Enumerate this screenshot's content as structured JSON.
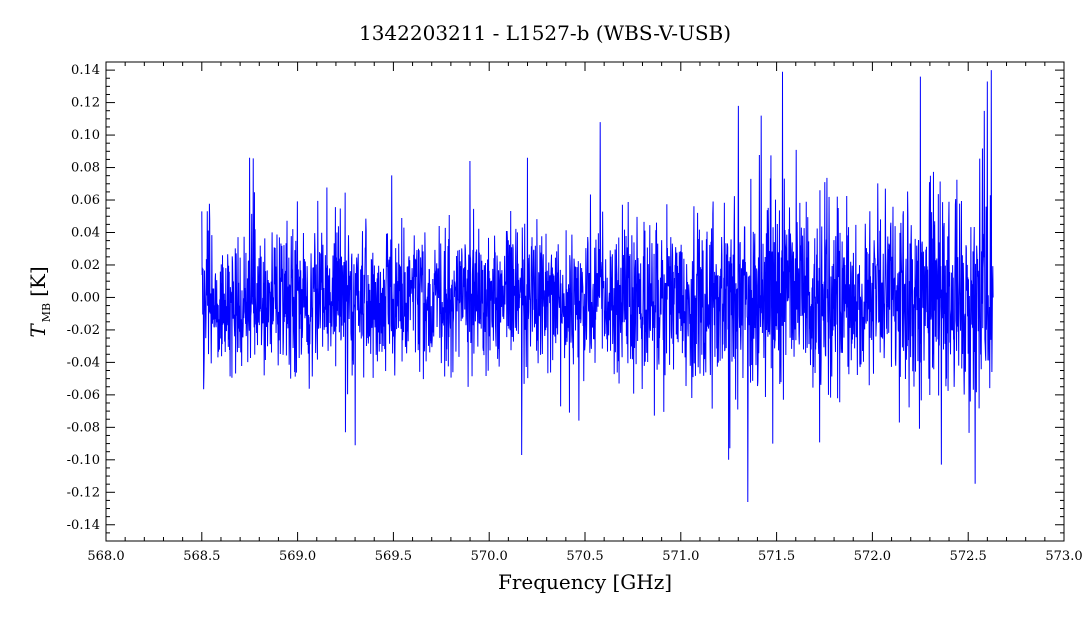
{
  "chart_data": {
    "type": "line",
    "title": "1342203211 - L1527-b (WBS-V-USB)",
    "xlabel": "Frequency [GHz]",
    "ylabel_main": "T",
    "ylabel_sub": "MB",
    "ylabel_unit": "[K]",
    "xlim": [
      568.0,
      573.0
    ],
    "ylim": [
      -0.15,
      0.145
    ],
    "x_ticks": [
      568.0,
      568.5,
      569.0,
      569.5,
      570.0,
      570.5,
      571.0,
      571.5,
      572.0,
      572.5,
      573.0
    ],
    "x_tick_labels": [
      "568.0",
      "568.5",
      "569.0",
      "569.5",
      "570.0",
      "570.5",
      "571.0",
      "571.5",
      "572.0",
      "572.5",
      "573.0"
    ],
    "y_ticks": [
      -0.14,
      -0.12,
      -0.1,
      -0.08,
      -0.06,
      -0.04,
      -0.02,
      0.0,
      0.02,
      0.04,
      0.06,
      0.08,
      0.1,
      0.12,
      0.14
    ],
    "y_tick_labels": [
      "-0.14",
      "-0.12",
      "-0.10",
      "-0.08",
      "-0.06",
      "-0.04",
      "-0.02",
      "0.00",
      "0.02",
      "0.04",
      "0.06",
      "0.08",
      "0.10",
      "0.12",
      "0.14"
    ],
    "grid": false,
    "series": [
      {
        "color": "#0000ff",
        "x_start": 568.5,
        "x_end": 572.63,
        "baseline": 0.0,
        "noise_profile": [
          [
            568.5,
            0.022
          ],
          [
            569.0,
            0.024
          ],
          [
            569.5,
            0.022
          ],
          [
            570.0,
            0.022
          ],
          [
            570.5,
            0.023
          ],
          [
            571.0,
            0.024
          ],
          [
            571.3,
            0.03
          ],
          [
            571.5,
            0.03
          ],
          [
            572.0,
            0.027
          ],
          [
            572.2,
            0.03
          ],
          [
            572.4,
            0.03
          ],
          [
            572.63,
            0.034
          ]
        ],
        "notable_points": [
          [
            568.5,
            0.053
          ],
          [
            568.75,
            0.086
          ],
          [
            569.9,
            0.084
          ],
          [
            570.2,
            0.086
          ],
          [
            570.58,
            0.108
          ],
          [
            571.3,
            0.118
          ],
          [
            571.42,
            0.112
          ],
          [
            571.53,
            0.139
          ],
          [
            572.25,
            0.136
          ],
          [
            572.6,
            0.133
          ],
          [
            572.62,
            0.14
          ],
          [
            570.17,
            -0.097
          ],
          [
            571.25,
            -0.1
          ],
          [
            571.35,
            -0.126
          ],
          [
            571.48,
            -0.09
          ],
          [
            572.36,
            -0.103
          ],
          [
            569.3,
            -0.091
          ],
          [
            569.25,
            -0.083
          ]
        ]
      }
    ]
  }
}
